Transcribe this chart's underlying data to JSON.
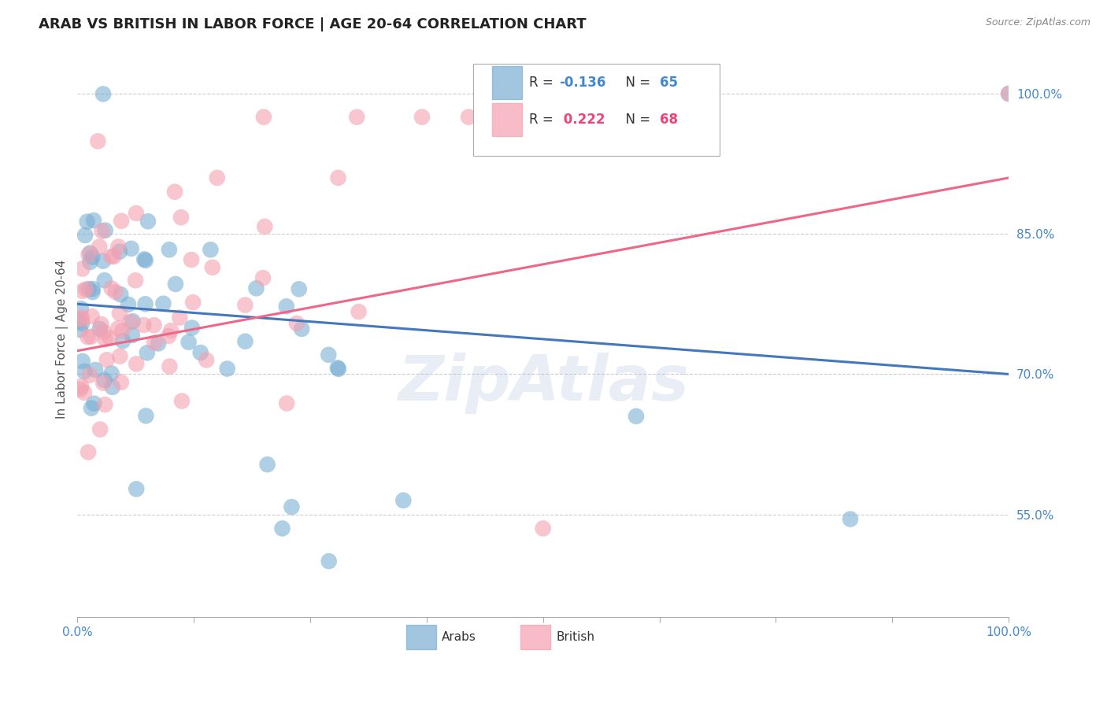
{
  "title": "ARAB VS BRITISH IN LABOR FORCE | AGE 20-64 CORRELATION CHART",
  "source": "Source: ZipAtlas.com",
  "ylabel": "In Labor Force | Age 20-64",
  "xlim": [
    0.0,
    1.0
  ],
  "ylim": [
    0.44,
    1.035
  ],
  "yticks": [
    0.55,
    0.7,
    0.85,
    1.0
  ],
  "ytick_labels": [
    "55.0%",
    "70.0%",
    "85.0%",
    "100.0%"
  ],
  "arab_R": -0.136,
  "arab_N": 65,
  "brit_R": 0.222,
  "brit_N": 68,
  "arab_color": "#7BAFD4",
  "british_color": "#F4A0B0",
  "arab_line_color": "#4477BB",
  "british_line_color": "#EE6688",
  "background_color": "#FFFFFF",
  "grid_color": "#CCCCCC",
  "title_fontsize": 13,
  "axis_label_fontsize": 11,
  "tick_fontsize": 11,
  "watermark_text": "ZipAtlas",
  "tick_label_color": "#4488CC"
}
